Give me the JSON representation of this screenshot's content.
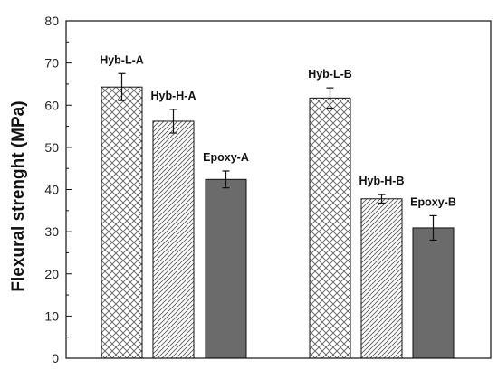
{
  "chart_data": {
    "type": "bar",
    "title": "",
    "xlabel": "",
    "ylabel": "Flexural strenght (MPa)",
    "ylim": [
      0,
      80
    ],
    "yticks": [
      0,
      10,
      20,
      30,
      40,
      50,
      60,
      70,
      80
    ],
    "grid": false,
    "legend": "none",
    "bars": [
      {
        "label": "Hyb-L-A",
        "value": 64.3,
        "error": 3.2,
        "pattern": "crosshatch",
        "group": "A"
      },
      {
        "label": "Hyb-H-A",
        "value": 56.2,
        "error": 2.8,
        "pattern": "diagonal",
        "group": "A"
      },
      {
        "label": "Epoxy-A",
        "value": 42.4,
        "error": 2.0,
        "pattern": "solid",
        "group": "A"
      },
      {
        "label": "Hyb-L-B",
        "value": 61.7,
        "error": 2.4,
        "pattern": "crosshatch",
        "group": "B"
      },
      {
        "label": "Hyb-H-B",
        "value": 37.8,
        "error": 1.0,
        "pattern": "diagonal",
        "group": "B"
      },
      {
        "label": "Epoxy-B",
        "value": 30.9,
        "error": 2.9,
        "pattern": "solid",
        "group": "B"
      }
    ],
    "colors": {
      "solid_fill": "#6b6b6b",
      "pattern_stroke": "#555555",
      "outline": "#111111"
    }
  }
}
